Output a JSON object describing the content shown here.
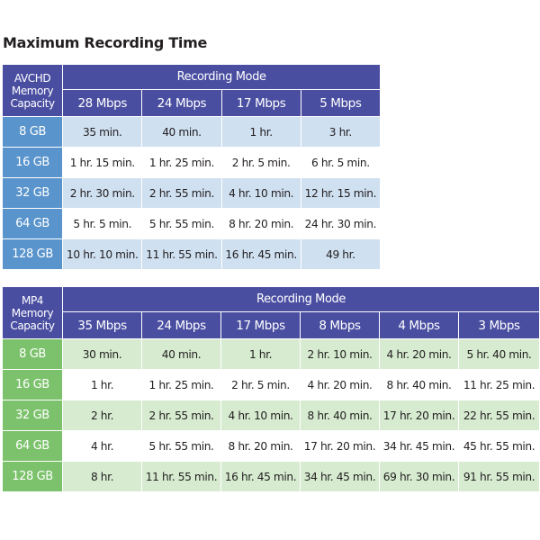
{
  "title": "Maximum Recording Time",
  "avchd": {
    "corner": [
      "AVCHD",
      "Memory",
      "Capacity"
    ],
    "mode_label": "Recording Mode",
    "rates": [
      "28 Mbps",
      "24 Mbps",
      "17 Mbps",
      "5 Mbps"
    ],
    "rows": [
      {
        "capacity": "8 GB",
        "values": [
          "35 min.",
          "40 min.",
          "1 hr.",
          "3 hr."
        ]
      },
      {
        "capacity": "16 GB",
        "values": [
          "1 hr. 15 min.",
          "1 hr. 25 min.",
          "2 hr. 5 min.",
          "6 hr. 5 min."
        ]
      },
      {
        "capacity": "32 GB",
        "values": [
          "2 hr. 30 min.",
          "2 hr. 55 min.",
          "4 hr. 10 min.",
          "12 hr. 15 min."
        ]
      },
      {
        "capacity": "64 GB",
        "values": [
          "5 hr. 5 min.",
          "5 hr. 55 min.",
          "8 hr. 20 min.",
          "24 hr. 30 min."
        ]
      },
      {
        "capacity": "128 GB",
        "values": [
          "10 hr. 10 min.",
          "11 hr. 55 min.",
          "16 hr. 45 min.",
          "49 hr."
        ]
      }
    ]
  },
  "mp4": {
    "corner": [
      "MP4",
      "Memory",
      "Capacity"
    ],
    "mode_label": "Recording Mode",
    "rates": [
      "35 Mbps",
      "24 Mbps",
      "17 Mbps",
      "8 Mbps",
      "4 Mbps",
      "3 Mbps"
    ],
    "rows": [
      {
        "capacity": "8 GB",
        "values": [
          "30 min.",
          "40 min.",
          "1 hr.",
          "2 hr. 10 min.",
          "4 hr. 20 min.",
          "5 hr. 40 min."
        ]
      },
      {
        "capacity": "16 GB",
        "values": [
          "1 hr.",
          "1 hr. 25 min.",
          "2 hr. 5 min.",
          "4 hr. 20 min.",
          "8 hr. 40 min.",
          "11 hr. 25 min."
        ]
      },
      {
        "capacity": "32 GB",
        "values": [
          "2 hr.",
          "2 hr. 55 min.",
          "4 hr. 10 min.",
          "8 hr. 40 min.",
          "17 hr. 20 min.",
          "22 hr. 55 min."
        ]
      },
      {
        "capacity": "64 GB",
        "values": [
          "4 hr.",
          "5 hr. 55 min.",
          "8 hr. 20 min.",
          "17 hr. 20 min.",
          "34 hr. 45 min.",
          "45 hr. 55 min."
        ]
      },
      {
        "capacity": "128 GB",
        "values": [
          "8 hr.",
          "11 hr. 55 min.",
          "16 hr. 45 min.",
          "34 hr. 45 min.",
          "69 hr. 30 min.",
          "91 hr. 55 min."
        ]
      }
    ]
  },
  "colors": {
    "header_bg": "#4a4ea1",
    "avchd_capacity_bg": "#5a94cc",
    "avchd_stripe_bg": "#cfe0f1",
    "mp4_capacity_bg": "#7cc26c",
    "mp4_stripe_bg": "#d6ebd0"
  }
}
